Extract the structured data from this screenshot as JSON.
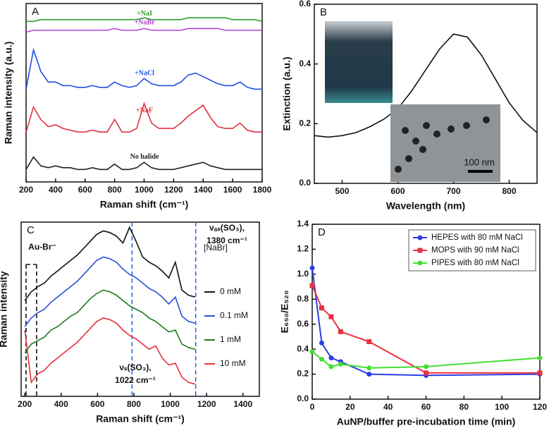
{
  "chart_data": [
    {
      "type": "line",
      "label": "A",
      "x_label": "Raman shift (cm⁻¹)",
      "y_label": "Raman intensity (a.u.)",
      "xlim": [
        200,
        1800
      ],
      "xticks": [
        200,
        400,
        600,
        800,
        1000,
        1200,
        1400,
        1600,
        1800
      ],
      "ylim": [
        0,
        100
      ],
      "x": [
        200,
        250,
        300,
        350,
        400,
        450,
        500,
        550,
        600,
        650,
        700,
        750,
        800,
        850,
        900,
        950,
        1000,
        1050,
        1100,
        1150,
        1200,
        1250,
        1300,
        1350,
        1400,
        1450,
        1500,
        1550,
        1600,
        1650,
        1700,
        1750,
        1800
      ],
      "series": [
        {
          "name": "+NaI",
          "color": "#2ca02c",
          "values": [
            90,
            90,
            91,
            91,
            91,
            91,
            91,
            91,
            91,
            91,
            91,
            91,
            91,
            91,
            91,
            91,
            92,
            91,
            91,
            91,
            91,
            91,
            92,
            92,
            92,
            92,
            92,
            92,
            91,
            91,
            91,
            91,
            90
          ]
        },
        {
          "name": "+NaBr",
          "color": "#b040d0",
          "values": [
            84,
            85,
            85,
            85,
            85,
            85,
            85,
            85,
            85,
            85,
            85,
            85,
            86,
            85,
            85,
            85,
            86,
            85,
            85,
            85,
            85,
            85,
            86,
            86,
            86,
            86,
            86,
            85,
            85,
            85,
            85,
            85,
            85
          ]
        },
        {
          "name": "+NaCl",
          "color": "#2050e0",
          "values": [
            52,
            74,
            62,
            56,
            56,
            54,
            54,
            53,
            53,
            54,
            53,
            53,
            56,
            54,
            53,
            54,
            58,
            55,
            54,
            54,
            54,
            56,
            60,
            61,
            59,
            57,
            55,
            54,
            54,
            56,
            53,
            52,
            52
          ]
        },
        {
          "name": "+NaF",
          "color": "#e03040",
          "values": [
            28,
            42,
            35,
            31,
            32,
            30,
            29,
            28,
            28,
            29,
            28,
            28,
            35,
            28,
            28,
            30,
            44,
            33,
            30,
            30,
            30,
            33,
            37,
            40,
            43,
            36,
            31,
            30,
            30,
            33,
            29,
            28,
            28
          ]
        },
        {
          "name": "No halide",
          "color": "#222222",
          "values": [
            7,
            14,
            9,
            8,
            9,
            8,
            8,
            7,
            7,
            8,
            7,
            7,
            10,
            7,
            7,
            8,
            11,
            8,
            7,
            7,
            7,
            8,
            9,
            10,
            11,
            9,
            8,
            7,
            7,
            7,
            7,
            7,
            7
          ]
        }
      ]
    },
    {
      "type": "line",
      "label": "B",
      "x_label": "Wavelength (nm)",
      "y_label": "Extinction (a.u.)",
      "xlim": [
        450,
        850
      ],
      "xticks": [
        500,
        600,
        700,
        800
      ],
      "ylim": [
        0,
        0.6
      ],
      "yticks": [
        {
          "value": 0,
          "label": "0.0"
        },
        0.2,
        0.4,
        0.6
      ],
      "x": [
        450,
        475,
        500,
        525,
        550,
        575,
        600,
        625,
        650,
        675,
        700,
        725,
        750,
        775,
        800,
        825,
        850
      ],
      "series": [
        {
          "color": "#111111",
          "values": [
            0.16,
            0.155,
            0.16,
            0.17,
            0.19,
            0.215,
            0.25,
            0.31,
            0.38,
            0.45,
            0.5,
            0.49,
            0.43,
            0.35,
            0.27,
            0.21,
            0.17
          ]
        }
      ],
      "inset_scale_label": "100 nm"
    },
    {
      "type": "line",
      "label": "C",
      "x_label": "Raman shift (cm⁻¹)",
      "y_label": "Raman intensity",
      "xlim": [
        180,
        1490
      ],
      "xticks": [
        200,
        400,
        600,
        800,
        1000,
        1200,
        1400
      ],
      "ylim": [
        0,
        100
      ],
      "x": [
        200,
        236,
        272,
        308,
        344,
        380,
        416,
        452,
        488,
        524,
        560,
        596,
        632,
        668,
        704,
        740,
        776,
        812,
        848,
        884,
        920,
        956,
        992,
        1028,
        1064,
        1100,
        1136
      ],
      "legend_title": "[NaBr]",
      "series": [
        {
          "name": "0 mM",
          "color": "#111111",
          "values": [
            55,
            60,
            63,
            65,
            69,
            72,
            75,
            78,
            81,
            85,
            89,
            93,
            95,
            94,
            92,
            88,
            97,
            89,
            80,
            77,
            75,
            72,
            68,
            77,
            61,
            58,
            57
          ]
        },
        {
          "name": "0.1 mM",
          "color": "#2a50d8",
          "values": [
            40,
            45,
            48,
            50,
            54,
            57,
            60,
            63,
            66,
            70,
            74,
            78,
            80,
            79,
            77,
            73,
            70,
            68,
            65,
            62,
            60,
            57,
            53,
            57,
            46,
            43,
            42
          ]
        },
        {
          "name": "1 mM",
          "color": "#1e7a1e",
          "values": [
            25,
            30,
            32,
            34,
            38,
            40,
            43,
            46,
            48,
            52,
            56,
            59,
            61,
            60,
            58,
            55,
            52,
            50,
            48,
            45,
            43,
            40,
            37,
            38,
            30,
            28,
            27
          ]
        },
        {
          "name": "10 mM",
          "color": "#e83040",
          "values": [
            38,
            8,
            13,
            15,
            19,
            22,
            25,
            28,
            31,
            35,
            39,
            43,
            45,
            44,
            42,
            38,
            35,
            33,
            30,
            27,
            29,
            22,
            18,
            19,
            11,
            8,
            7
          ]
        }
      ],
      "markers": [
        {
          "x": 207,
          "color": "#111111"
        },
        {
          "x": 265,
          "color": "#111111"
        },
        {
          "x": 790,
          "color": "#2a6ad8"
        },
        {
          "x": 1140,
          "color": "#2a6ad8"
        }
      ],
      "annotations": [
        "Au-Br⁻",
        "νₐₛ(SO₃),",
        "1380 cm⁻¹",
        "νₛ(SO₃),",
        "1022 cm⁻¹"
      ]
    },
    {
      "type": "line",
      "label": "D",
      "x_label": "AuNP/buffer pre-incubation time (min)",
      "y_label": "E₆₅₀/E₅₂₀",
      "xlim": [
        0,
        120
      ],
      "xticks": [
        0,
        20,
        40,
        60,
        80,
        100,
        120
      ],
      "ylim": [
        0,
        1.4
      ],
      "yticks": [
        {
          "value": 0,
          "label": "0.0"
        },
        0.2,
        0.4,
        0.6,
        0.8,
        {
          "value": 1,
          "label": "1.0"
        },
        1.2,
        1.4
      ],
      "legend": "upper right",
      "x": [
        0,
        5,
        10,
        15,
        30,
        60,
        120
      ],
      "series": [
        {
          "name": "HEPES with 80 mM NaCl",
          "color": "#2a3ee8",
          "marker": "circle",
          "values": [
            1.05,
            0.45,
            0.33,
            0.3,
            0.2,
            0.19,
            0.2
          ]
        },
        {
          "name": "MOPS with 90 mM NaCl",
          "color": "#e83040",
          "marker": "square",
          "values": [
            0.91,
            0.73,
            0.66,
            0.54,
            0.46,
            0.21,
            0.21
          ]
        },
        {
          "name": "PIPES with 80 mM NaCl",
          "color": "#44dd33",
          "marker": "circle",
          "values": [
            0.38,
            0.32,
            0.26,
            0.28,
            0.25,
            0.26,
            0.33
          ]
        }
      ]
    }
  ]
}
